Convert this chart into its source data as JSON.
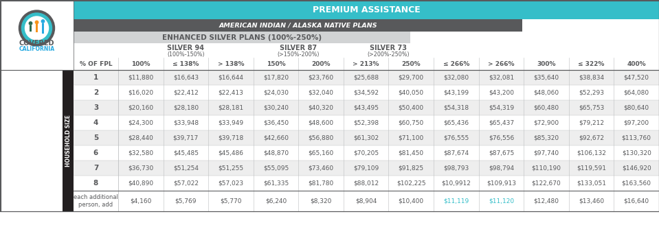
{
  "title": "PREMIUM ASSISTANCE",
  "subtitle1": "AMERICAN INDIAN / ALASKA NATIVE PLANS",
  "subtitle2": "ENHANCED SILVER PLANS (100%-250%)",
  "silver94_label": "SILVER 94",
  "silver94_range": "(100%-150%)",
  "silver87_label": "SILVER 87",
  "silver87_range": "(>150%-200%)",
  "silver73_label": "SILVER 73",
  "silver73_range": "(>200%-250%)",
  "col_headers": [
    "% OF FPL",
    "100%",
    "≤ 138%",
    "> 138%",
    "150%",
    "200%",
    "> 213%",
    "250%",
    "≤ 266%",
    "> 266%",
    "300%",
    "≤ 322%",
    "400%"
  ],
  "row_labels": [
    "1",
    "2",
    "3",
    "4",
    "5",
    "6",
    "7",
    "8"
  ],
  "row_label_extra": "each additional\nperson, add",
  "data": [
    [
      "$11,880",
      "$16,643",
      "$16,644",
      "$17,820",
      "$23,760",
      "$25,688",
      "$29,700",
      "$32,080",
      "$32,081",
      "$35,640",
      "$38,834",
      "$47,520"
    ],
    [
      "$16,020",
      "$22,412",
      "$22,413",
      "$24,030",
      "$32,040",
      "$34,592",
      "$40,050",
      "$43,199",
      "$43,200",
      "$48,060",
      "$52,293",
      "$64,080"
    ],
    [
      "$20,160",
      "$28,180",
      "$28,181",
      "$30,240",
      "$40,320",
      "$43,495",
      "$50,400",
      "$54,318",
      "$54,319",
      "$60,480",
      "$65,753",
      "$80,640"
    ],
    [
      "$24,300",
      "$33,948",
      "$33,949",
      "$36,450",
      "$48,600",
      "$52,398",
      "$60,750",
      "$65,436",
      "$65,437",
      "$72,900",
      "$79,212",
      "$97,200"
    ],
    [
      "$28,440",
      "$39,717",
      "$39,718",
      "$42,660",
      "$56,880",
      "$61,302",
      "$71,100",
      "$76,555",
      "$76,556",
      "$85,320",
      "$92,672",
      "$113,760"
    ],
    [
      "$32,580",
      "$45,485",
      "$45,486",
      "$48,870",
      "$65,160",
      "$70,205",
      "$81,450",
      "$87,674",
      "$87,675",
      "$97,740",
      "$106,132",
      "$130,320"
    ],
    [
      "$36,730",
      "$51,254",
      "$51,255",
      "$55,095",
      "$73,460",
      "$79,109",
      "$91,825",
      "$98,793",
      "$98,794",
      "$110,190",
      "$119,591",
      "$146,920"
    ],
    [
      "$40,890",
      "$57,022",
      "$57,023",
      "$61,335",
      "$81,780",
      "$88,012",
      "$102,225",
      "$10,9912",
      "$109,913",
      "$122,670",
      "$133,051",
      "$163,560"
    ]
  ],
  "extra_row": [
    "$4,160",
    "$5,769",
    "$5,770",
    "$6,240",
    "$8,320",
    "$8,904",
    "$10,400",
    "$11,119",
    "$11,120",
    "$12,480",
    "$13,460",
    "$16,640"
  ],
  "color_teal": "#35BEC9",
  "color_dark_gray": "#58595B",
  "color_medium_gray": "#808285",
  "color_light_gray": "#BCBEC0",
  "color_silver_header": "#D1D3D4",
  "color_white": "#FFFFFF",
  "color_black": "#231F20",
  "color_orange": "#F7941D",
  "color_blue_dark": "#27AAE1",
  "color_row_odd": "#EEEEEE",
  "color_row_even": "#FFFFFF",
  "color_extra_teal": "#35BEC9"
}
